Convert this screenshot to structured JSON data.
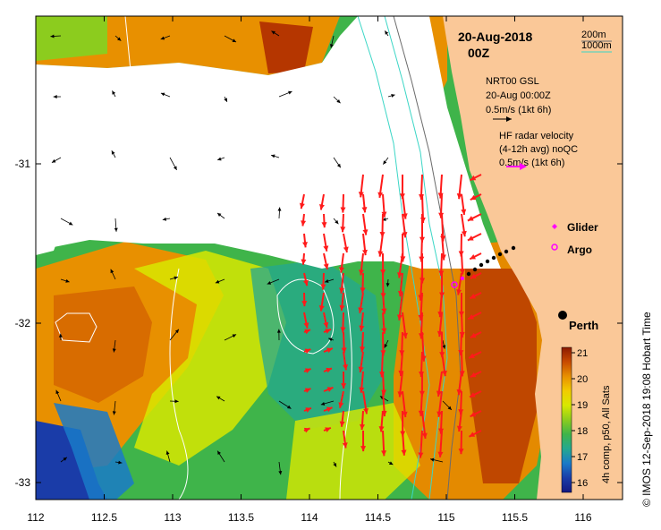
{
  "header": {
    "date": "20-Aug-2018",
    "time": "00Z"
  },
  "depth_legend": [
    {
      "label": "200m",
      "color": "#6b6b6b"
    },
    {
      "label": "1000m",
      "color": "#3bd6c6"
    }
  ],
  "model_legend": {
    "line1": "NRT00 GSL",
    "line2": "20-Aug 00:00Z",
    "scale": "0.5m/s (1kt 6h)",
    "arrow_color": "#000000"
  },
  "radar_legend": {
    "line1": "HF radar velocity",
    "line2": "(4-12h avg) noQC",
    "scale": "0.5m/s (1kt 6h)",
    "arrow_color": "#ff00ff"
  },
  "markers": [
    {
      "label": "Glider",
      "symbol": "diamond",
      "color": "#ff00ff"
    },
    {
      "label": "Argo",
      "symbol": "ring",
      "color": "#ff00ff"
    }
  ],
  "city": {
    "label": "Perth"
  },
  "x_axis": {
    "ticks": [
      "112",
      "112.5",
      "113",
      "113.5",
      "114",
      "114.5",
      "115",
      "115.5",
      "116"
    ]
  },
  "y_axis": {
    "ticks": [
      "-31",
      "-32",
      "-33"
    ]
  },
  "colorbar": {
    "title": "4h comp, p50, All Sats",
    "ticks": [
      "21",
      "20",
      "19",
      "18",
      "17",
      "16"
    ],
    "colors": [
      "#8b1a00",
      "#c84a00",
      "#e89000",
      "#f2cc00",
      "#d8e800",
      "#8ccc1e",
      "#3fb44a",
      "#24a890",
      "#1a7ac8",
      "#1a3ca8",
      "#141880"
    ]
  },
  "credit": "© IMOS 12-Sep-2018 19:08 Hobart Time",
  "colors": {
    "land": "#fac898",
    "radar_arrow": "#ff1a1a",
    "model_arrow": "#000000"
  }
}
